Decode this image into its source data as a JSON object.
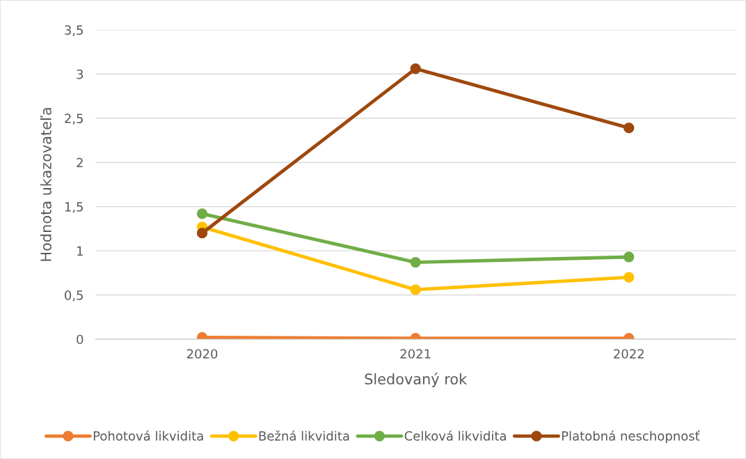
{
  "chart_data": {
    "type": "line",
    "xlabel": "Sledovaný rok",
    "ylabel": "Hodnota ukazovateľa",
    "categories": [
      "2020",
      "2021",
      "2022"
    ],
    "series": [
      {
        "name": "Pohotová likvidita",
        "color": "#ed7d31",
        "values": [
          0.02,
          0.01,
          0.01
        ]
      },
      {
        "name": "Bežná likvidita",
        "color": "#ffc000",
        "values": [
          1.27,
          0.56,
          0.7
        ]
      },
      {
        "name": "Celková likvidita",
        "color": "#70ad47",
        "values": [
          1.42,
          0.87,
          0.93
        ]
      },
      {
        "name": "Platobná neschopnosť",
        "color": "#9e480e",
        "values": [
          1.2,
          3.06,
          2.39
        ]
      }
    ],
    "ylim": [
      0,
      3.5
    ],
    "yticks": [
      0,
      {
        "value": 0.5,
        "label": "0,5"
      },
      1,
      {
        "value": 1.5,
        "label": "1,5"
      },
      2,
      {
        "value": 2.5,
        "label": "2,5"
      },
      3,
      {
        "value": 3.5,
        "label": "3,5"
      }
    ],
    "grid": "y",
    "legend": "bottom",
    "marker": "circle",
    "line_style": "solid"
  }
}
